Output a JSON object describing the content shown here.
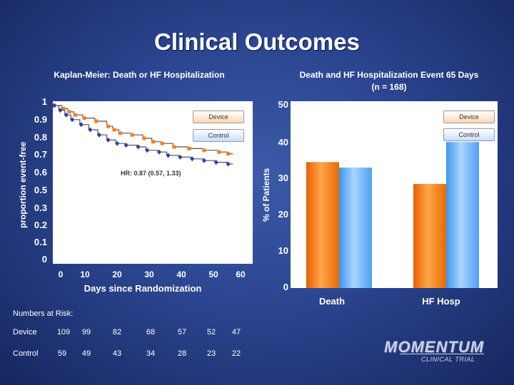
{
  "title": "Clinical Outcomes",
  "chart_data": [
    {
      "type": "line",
      "title": "Kaplan-Meier: Death or HF Hospitalization",
      "xlabel": "Days since Randomization",
      "ylabel": "proportion event-free",
      "xlim": [
        0,
        60
      ],
      "x_ticks": [
        "0",
        "10",
        "20",
        "30",
        "40",
        "50",
        "60"
      ],
      "y_ticks": [
        "1",
        "0.9",
        "0.8",
        "0.7",
        "0.6",
        "0.5",
        "0.3",
        "0.2",
        "0.1",
        "0"
      ],
      "annotation": "HR: 0.87 (0.57, 1.33)",
      "legend": [
        "Device",
        "Control"
      ],
      "series": [
        {
          "name": "Device",
          "color": "#ff7a1a",
          "points": [
            [
              0,
              1.0
            ],
            [
              3,
              0.98
            ],
            [
              5,
              0.96
            ],
            [
              7,
              0.94
            ],
            [
              10,
              0.92
            ],
            [
              14,
              0.9
            ],
            [
              18,
              0.87
            ],
            [
              20,
              0.85
            ],
            [
              22,
              0.83
            ],
            [
              26,
              0.82
            ],
            [
              30,
              0.8
            ],
            [
              33,
              0.78
            ],
            [
              36,
              0.77
            ],
            [
              40,
              0.75
            ],
            [
              45,
              0.74
            ],
            [
              50,
              0.73
            ],
            [
              55,
              0.72
            ],
            [
              58,
              0.71
            ]
          ]
        },
        {
          "name": "Control",
          "color": "#2a3fae",
          "points": [
            [
              0,
              1.0
            ],
            [
              2,
              0.97
            ],
            [
              4,
              0.94
            ],
            [
              6,
              0.91
            ],
            [
              9,
              0.88
            ],
            [
              12,
              0.85
            ],
            [
              15,
              0.82
            ],
            [
              18,
              0.79
            ],
            [
              21,
              0.77
            ],
            [
              24,
              0.76
            ],
            [
              28,
              0.75
            ],
            [
              31,
              0.73
            ],
            [
              35,
              0.72
            ],
            [
              38,
              0.7
            ],
            [
              42,
              0.69
            ],
            [
              46,
              0.68
            ],
            [
              50,
              0.67
            ],
            [
              54,
              0.66
            ],
            [
              58,
              0.65
            ]
          ]
        }
      ],
      "numbers_at_risk": {
        "heading": "Numbers at Risk:",
        "rows": [
          {
            "label": "Device",
            "values": [
              "109",
              "99",
              "82",
              "68",
              "57",
              "52",
              "47"
            ]
          },
          {
            "label": "Control",
            "values": [
              "59",
              "49",
              "43",
              "34",
              "28",
              "23",
              "22"
            ]
          }
        ]
      }
    },
    {
      "type": "bar",
      "title": "Death and HF Hospitalization Event 65 Days",
      "subtitle": "(n = 168)",
      "ylabel": "% of Patients",
      "ylim": [
        0,
        50
      ],
      "y_ticks": [
        "50",
        "40",
        "30",
        "20",
        "10",
        "0"
      ],
      "categories": [
        "Death",
        "HF Hosp"
      ],
      "legend": [
        "Device",
        "Control"
      ],
      "series": [
        {
          "name": "Device",
          "color": "#ff8c1a",
          "values": [
            34.5,
            28.5
          ]
        },
        {
          "name": "Control",
          "color": "#5fb0ff",
          "values": [
            33.0,
            40.0
          ]
        }
      ]
    }
  ],
  "logo": {
    "name": "MOMENTUM",
    "sub": "CLINICAL TRIAL"
  }
}
